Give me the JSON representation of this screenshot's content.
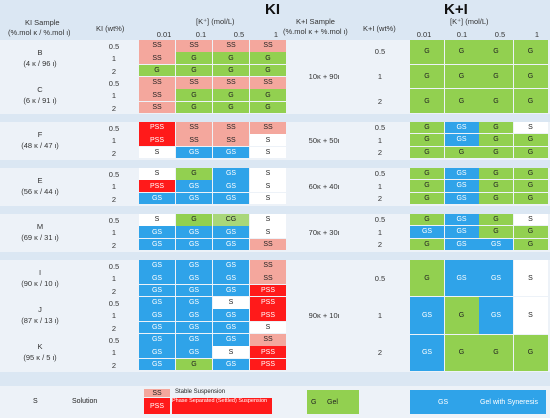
{
  "titles": {
    "ki": "KI",
    "kpi": "K+I"
  },
  "headers": {
    "ki_sample_line1": "KI Sample",
    "ki_sample_line2": "(%.mol κ / %.mol ι)",
    "ki_wt": "KI (wt%)",
    "conc": "[K⁺] (mol/L)",
    "kpi_sample_line1": "K+I  Sample",
    "kpi_sample_line2": "(%.mol κ + %.mol ι)",
    "kpi_wt": "K+I (wt%)",
    "conc_values": [
      "0.01",
      "0.1",
      "0.5",
      "1"
    ]
  },
  "ki_groups": [
    {
      "name": "B",
      "ratio": "(4 κ / 96 ι)",
      "rows": [
        [
          "0.5",
          [
            "SS",
            "SS",
            "SS",
            "SS"
          ]
        ],
        [
          "1",
          [
            "SS",
            "G",
            "G",
            "G"
          ]
        ],
        [
          "2",
          [
            "G",
            "G",
            "G",
            "G"
          ]
        ]
      ]
    },
    {
      "name": "C",
      "ratio": "(6 κ / 91 ι)",
      "rows": [
        [
          "0.5",
          [
            "SS",
            "SS",
            "SS",
            "SS"
          ]
        ],
        [
          "1",
          [
            "SS",
            "G",
            "G",
            "G"
          ]
        ],
        [
          "2",
          [
            "SS",
            "G",
            "G",
            "G"
          ]
        ]
      ]
    },
    {
      "name": "F",
      "ratio": "(48 κ / 47 ι)",
      "rows": [
        [
          "0.5",
          [
            "PSS",
            "SS",
            "SS",
            "SS"
          ]
        ],
        [
          "1",
          [
            "PSS",
            "SS",
            "SS",
            "S"
          ]
        ],
        [
          "2",
          [
            "S",
            "GS",
            "GS",
            "S"
          ]
        ]
      ]
    },
    {
      "name": "E",
      "ratio": "(56 κ / 44 ι)",
      "rows": [
        [
          "0.5",
          [
            "S",
            "G",
            "GS",
            "S"
          ]
        ],
        [
          "1",
          [
            "PSS",
            "GS",
            "GS",
            "S"
          ]
        ],
        [
          "2",
          [
            "GS",
            "GS",
            "GS",
            "S"
          ]
        ]
      ]
    },
    {
      "name": "M",
      "ratio": "(69 κ / 31 ι)",
      "rows": [
        [
          "0.5",
          [
            "S",
            "G",
            "CG",
            "S"
          ]
        ],
        [
          "1",
          [
            "GS",
            "GS",
            "GS",
            "S"
          ]
        ],
        [
          "2",
          [
            "GS",
            "GS",
            "GS",
            "SS"
          ]
        ]
      ]
    },
    {
      "name": "I",
      "ratio": "(90 κ / 10 ι)",
      "rows": [
        [
          "0.5",
          [
            "GS",
            "GS",
            "GS",
            "SS"
          ]
        ],
        [
          "1",
          [
            "GS",
            "GS",
            "GS",
            "SS"
          ]
        ],
        [
          "2",
          [
            "GS",
            "GS",
            "GS",
            "PSS"
          ]
        ]
      ]
    },
    {
      "name": "J",
      "ratio": "(87 κ / 13 ι)",
      "rows": [
        [
          "0.5",
          [
            "GS",
            "GS",
            "S",
            "PSS"
          ]
        ],
        [
          "1",
          [
            "GS",
            "GS",
            "GS",
            "PSS"
          ]
        ],
        [
          "2",
          [
            "GS",
            "GS",
            "GS",
            "S"
          ]
        ]
      ]
    },
    {
      "name": "K",
      "ratio": "(95 κ / 5 ι)",
      "rows": [
        [
          "0.5",
          [
            "GS",
            "GS",
            "GS",
            "SS"
          ]
        ],
        [
          "1",
          [
            "GS",
            "GS",
            "S",
            "PSS"
          ]
        ],
        [
          "2",
          [
            "GS",
            "G",
            "GS",
            "PSS"
          ]
        ]
      ]
    }
  ],
  "kpi_groups": [
    {
      "name": "10κ + 90ι",
      "rows": [
        [
          "0.5",
          [
            "G",
            "G",
            "G",
            "G"
          ]
        ],
        [
          "1",
          [
            "G",
            "G",
            "G",
            "G"
          ]
        ],
        [
          "2",
          [
            "G",
            "G",
            "G",
            "G"
          ]
        ]
      ]
    },
    {
      "name": "50κ + 50ι",
      "rows": [
        [
          "0.5",
          [
            "G",
            "GS",
            "G",
            "S"
          ]
        ],
        [
          "1",
          [
            "G",
            "GS",
            "G",
            "G"
          ]
        ],
        [
          "2",
          [
            "G",
            "G",
            "G",
            "G"
          ]
        ]
      ]
    },
    {
      "name": "60κ + 40ι",
      "rows": [
        [
          "0.5",
          [
            "G",
            "GS",
            "G",
            "G"
          ]
        ],
        [
          "1",
          [
            "G",
            "GS",
            "G",
            "G"
          ]
        ],
        [
          "2",
          [
            "G",
            "GS",
            "G",
            "G"
          ]
        ]
      ]
    },
    {
      "name": "70κ + 30ι",
      "rows": [
        [
          "0.5",
          [
            "G",
            "GS",
            "G",
            "S"
          ]
        ],
        [
          "1",
          [
            "GS",
            "GS",
            "G",
            "G"
          ]
        ],
        [
          "2",
          [
            "G",
            "GS",
            "GS",
            "G"
          ]
        ]
      ]
    },
    {
      "name": "90κ + 10ι",
      "rows": [
        [
          "0.5",
          [
            "G",
            "GS",
            "GS",
            "S"
          ]
        ],
        [
          "1",
          [
            "GS",
            "G",
            "GS",
            "S"
          ]
        ],
        [
          "2",
          [
            "GS",
            "G",
            "G",
            "G"
          ]
        ]
      ]
    }
  ],
  "legend": {
    "s_code": "S",
    "s_label": "Solution",
    "ss_code": "SS",
    "ss_label": "Stable Suspension",
    "pss_code": "PSS",
    "pss_label": "Phase Separated (Settled) Suspension",
    "g_code": "G",
    "g_label": "Gel",
    "gs_code": "GS",
    "gs_label": "Gel with Syneresis"
  },
  "colors": {
    "SS": "#f4a79d",
    "G": "#92d050",
    "GS": "#2fa3e9",
    "S": "#ffffff",
    "PSS": "#ff1a1a",
    "CG": "#a9d77a",
    "stripe": "#dbe7f3"
  }
}
